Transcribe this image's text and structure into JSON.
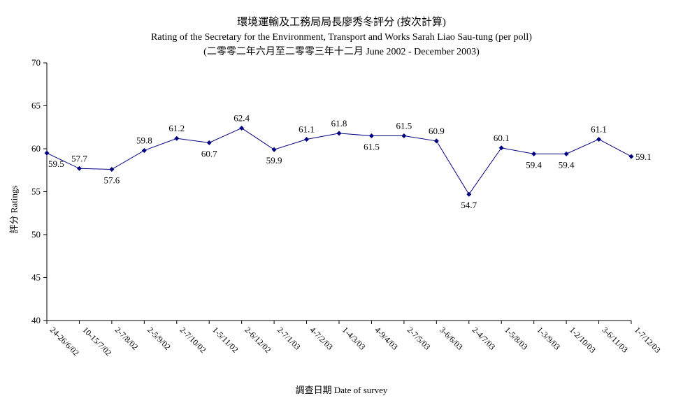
{
  "chart_data": {
    "type": "line",
    "title": "環境運輸及工務局局長廖秀冬評分 (按次計算)",
    "subtitle": "Rating of the Secretary for the Environment, Transport and Works Sarah Liao Sau-tung  (per poll)",
    "subtitle2": "(二零零二年六月至二零零三年十二月 June 2002 - December 2003)",
    "xlabel": "調查日期 Date of survey",
    "ylabel": "評分 Ratings",
    "ylim": [
      40,
      70
    ],
    "yticks": [
      40,
      45,
      50,
      55,
      60,
      65,
      70
    ],
    "grid": false,
    "categories": [
      "24-26/6/02",
      "10-15/7/02",
      "2-7/8/02",
      "2-5/9/02",
      "2-7/10/02",
      "1-5/11/02",
      "2-6/12/02",
      "2-7/1/03",
      "4-7/2/03",
      "1-4/3/03",
      "4-9/4/03",
      "2-7/5/03",
      "3-6/6/03",
      "2-4/7/03",
      "1-5/8/03",
      "1-3/9/03",
      "1-2/10/03",
      "3-6/11/03",
      "1-7/12/03"
    ],
    "series": [
      {
        "values": [
          59.5,
          57.7,
          57.6,
          59.8,
          61.2,
          60.7,
          62.4,
          59.9,
          61.1,
          61.8,
          61.5,
          61.5,
          60.9,
          54.7,
          60.1,
          59.4,
          59.4,
          61.1,
          59.1
        ],
        "color": "#000080"
      }
    ]
  }
}
